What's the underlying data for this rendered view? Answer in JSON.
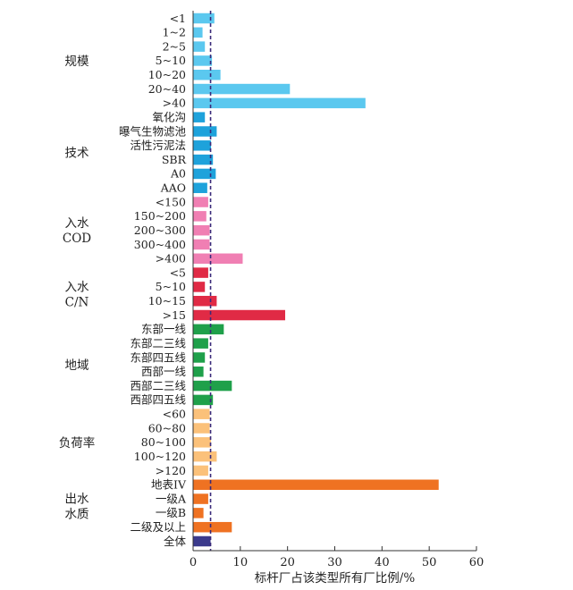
{
  "chart_data": {
    "type": "bar",
    "orientation": "horizontal",
    "xlabel": "标杆厂占该类型所有厂比例/%",
    "xlim": [
      0,
      60
    ],
    "xticks": [
      0,
      10,
      20,
      30,
      40,
      50,
      60
    ],
    "reference_line": {
      "value": 3.7,
      "style": "dashed",
      "color": "#3a2a7a"
    },
    "groups": [
      {
        "label_lines": [
          "规模"
        ],
        "color": "#5bc8ef",
        "categories": [
          "<1",
          "1~2",
          "2~5",
          "5~10",
          "10~20",
          "20~40",
          ">40"
        ],
        "values": [
          4.5,
          2.0,
          2.5,
          4.0,
          5.8,
          20.5,
          36.5
        ]
      },
      {
        "label_lines": [
          "技术"
        ],
        "color": "#1ea2db",
        "categories": [
          "氧化沟",
          "曝气生物滤池",
          "活性污泥法",
          "SBR",
          "A0",
          "AAO"
        ],
        "values": [
          2.5,
          5.0,
          3.8,
          4.2,
          4.8,
          3.0
        ]
      },
      {
        "label_lines": [
          "入水",
          "COD"
        ],
        "color": "#f07fb3",
        "categories": [
          "<150",
          "150~200",
          "200~300",
          "300~400",
          ">400"
        ],
        "values": [
          3.2,
          2.8,
          3.5,
          3.5,
          10.5
        ]
      },
      {
        "label_lines": [
          "入水",
          "C/N"
        ],
        "color": "#e02a45",
        "categories": [
          "<5",
          "5~10",
          "10~15",
          ">15"
        ],
        "values": [
          3.2,
          2.5,
          5.0,
          19.5
        ]
      },
      {
        "label_lines": [
          "地域"
        ],
        "color": "#1fa04a",
        "categories": [
          "东部一线",
          "东部二三线",
          "东部四五线",
          "西部一线",
          "西部二三线",
          "西部四五线"
        ],
        "values": [
          6.5,
          3.2,
          2.5,
          2.2,
          8.2,
          4.2
        ]
      },
      {
        "label_lines": [
          "负荷率"
        ],
        "color": "#fbc17a",
        "categories": [
          "<60",
          "60~80",
          "80~100",
          "100~120",
          ">120"
        ],
        "values": [
          3.5,
          3.5,
          3.8,
          5.0,
          3.2
        ]
      },
      {
        "label_lines": [
          "出水",
          "水质"
        ],
        "color": "#ef7222",
        "categories": [
          "地表IV",
          "一级A",
          "一级B",
          "二级及以上"
        ],
        "values": [
          52.0,
          3.2,
          2.2,
          8.2
        ]
      },
      {
        "label_lines": [],
        "color": "#3b3a8c",
        "categories": [
          "全体"
        ],
        "values": [
          3.7
        ]
      }
    ]
  }
}
